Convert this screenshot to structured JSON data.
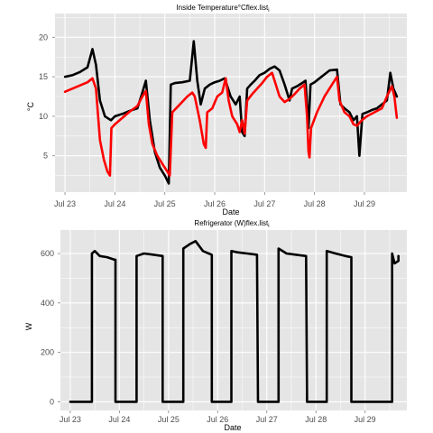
{
  "chart_data": [
    {
      "type": "line",
      "title": "Inside Temperature°Cflex.list",
      "title_subscript": "i",
      "xlabel": "Date",
      "ylabel": "°C",
      "x_ticks": [
        "Jul 23",
        "Jul 24",
        "Jul 25",
        "Jul 26",
        "Jul 27",
        "Jul 28",
        "Jul 29"
      ],
      "x_range_days": [
        22.8,
        29.85
      ],
      "ylim": [
        0.4,
        23.0
      ],
      "y_ticks": [
        5,
        10,
        15,
        20
      ],
      "grid": true,
      "background": "#e5e5e5",
      "series": [
        {
          "color": "#000000",
          "points": [
            [
              23.0,
              15.0
            ],
            [
              23.15,
              15.2
            ],
            [
              23.3,
              15.6
            ],
            [
              23.45,
              16.2
            ],
            [
              23.55,
              18.5
            ],
            [
              23.62,
              16.5
            ],
            [
              23.7,
              12.0
            ],
            [
              23.8,
              10.0
            ],
            [
              23.92,
              9.5
            ],
            [
              24.0,
              10.0
            ],
            [
              24.15,
              10.3
            ],
            [
              24.3,
              10.7
            ],
            [
              24.45,
              11.0
            ],
            [
              24.55,
              13.0
            ],
            [
              24.62,
              14.5
            ],
            [
              24.7,
              9.5
            ],
            [
              24.8,
              5.5
            ],
            [
              24.9,
              3.5
            ],
            [
              25.0,
              2.5
            ],
            [
              25.08,
              1.5
            ],
            [
              25.12,
              14.0
            ],
            [
              25.2,
              14.2
            ],
            [
              25.35,
              14.3
            ],
            [
              25.5,
              14.5
            ],
            [
              25.58,
              19.5
            ],
            [
              25.65,
              14.5
            ],
            [
              25.72,
              11.5
            ],
            [
              25.8,
              13.5
            ],
            [
              25.9,
              14.0
            ],
            [
              26.0,
              14.3
            ],
            [
              26.1,
              14.5
            ],
            [
              26.2,
              14.8
            ],
            [
              26.32,
              12.5
            ],
            [
              26.42,
              11.5
            ],
            [
              26.5,
              12.5
            ],
            [
              26.55,
              8.0
            ],
            [
              26.6,
              7.5
            ],
            [
              26.65,
              13.5
            ],
            [
              26.72,
              14.0
            ],
            [
              26.8,
              14.5
            ],
            [
              26.9,
              15.2
            ],
            [
              27.0,
              15.5
            ],
            [
              27.1,
              16.0
            ],
            [
              27.2,
              16.3
            ],
            [
              27.3,
              15.8
            ],
            [
              27.4,
              14.0
            ],
            [
              27.5,
              12.0
            ],
            [
              27.55,
              13.5
            ],
            [
              27.65,
              13.8
            ],
            [
              27.75,
              14.2
            ],
            [
              27.82,
              14.5
            ],
            [
              27.88,
              8.5
            ],
            [
              27.92,
              14.0
            ],
            [
              28.0,
              14.3
            ],
            [
              28.1,
              14.8
            ],
            [
              28.2,
              15.3
            ],
            [
              28.3,
              15.8
            ],
            [
              28.45,
              15.9
            ],
            [
              28.52,
              11.5
            ],
            [
              28.6,
              11.0
            ],
            [
              28.7,
              10.5
            ],
            [
              28.78,
              9.5
            ],
            [
              28.85,
              10.0
            ],
            [
              28.9,
              5.0
            ],
            [
              28.96,
              10.3
            ],
            [
              29.05,
              10.5
            ],
            [
              29.15,
              10.8
            ],
            [
              29.25,
              11.0
            ],
            [
              29.35,
              11.5
            ],
            [
              29.45,
              12.0
            ],
            [
              29.52,
              15.5
            ],
            [
              29.58,
              13.5
            ],
            [
              29.65,
              12.5
            ]
          ]
        },
        {
          "color": "#ff0000",
          "points": [
            [
              23.0,
              13.1
            ],
            [
              23.15,
              13.5
            ],
            [
              23.3,
              13.9
            ],
            [
              23.45,
              14.3
            ],
            [
              23.55,
              14.8
            ],
            [
              23.62,
              13.5
            ],
            [
              23.7,
              7.0
            ],
            [
              23.78,
              4.5
            ],
            [
              23.85,
              3.0
            ],
            [
              23.9,
              2.5
            ],
            [
              23.93,
              8.5
            ],
            [
              24.0,
              9.0
            ],
            [
              24.15,
              9.8
            ],
            [
              24.3,
              10.6
            ],
            [
              24.45,
              11.3
            ],
            [
              24.55,
              12.5
            ],
            [
              24.62,
              13.2
            ],
            [
              24.68,
              9.0
            ],
            [
              24.75,
              6.5
            ],
            [
              24.85,
              5.0
            ],
            [
              24.95,
              4.0
            ],
            [
              25.05,
              3.0
            ],
            [
              25.1,
              2.5
            ],
            [
              25.15,
              10.5
            ],
            [
              25.3,
              11.5
            ],
            [
              25.45,
              12.5
            ],
            [
              25.55,
              13.0
            ],
            [
              25.6,
              12.5
            ],
            [
              25.7,
              9.5
            ],
            [
              25.78,
              6.5
            ],
            [
              25.82,
              6.0
            ],
            [
              25.85,
              10.5
            ],
            [
              25.95,
              11.0
            ],
            [
              26.05,
              12.5
            ],
            [
              26.15,
              13.0
            ],
            [
              26.22,
              14.8
            ],
            [
              26.28,
              12.0
            ],
            [
              26.35,
              10.0
            ],
            [
              26.45,
              9.0
            ],
            [
              26.5,
              8.0
            ],
            [
              26.55,
              9.5
            ],
            [
              26.6,
              7.8
            ],
            [
              26.65,
              12.0
            ],
            [
              26.75,
              12.8
            ],
            [
              26.85,
              13.5
            ],
            [
              26.95,
              14.2
            ],
            [
              27.05,
              15.0
            ],
            [
              27.15,
              15.5
            ],
            [
              27.2,
              14.5
            ],
            [
              27.3,
              12.5
            ],
            [
              27.4,
              11.8
            ],
            [
              27.5,
              12.2
            ],
            [
              27.6,
              12.8
            ],
            [
              27.7,
              13.5
            ],
            [
              27.8,
              14.0
            ],
            [
              27.85,
              10.0
            ],
            [
              27.88,
              5.5
            ],
            [
              27.9,
              4.8
            ],
            [
              27.93,
              8.5
            ],
            [
              28.05,
              10.5
            ],
            [
              28.2,
              12.5
            ],
            [
              28.35,
              14.0
            ],
            [
              28.45,
              15.0
            ],
            [
              28.5,
              12.0
            ],
            [
              28.6,
              10.5
            ],
            [
              28.7,
              10.0
            ],
            [
              28.78,
              9.0
            ],
            [
              28.85,
              8.8
            ],
            [
              28.95,
              9.5
            ],
            [
              29.05,
              10.0
            ],
            [
              29.2,
              10.5
            ],
            [
              29.35,
              11.0
            ],
            [
              29.45,
              12.5
            ],
            [
              29.55,
              13.8
            ],
            [
              29.6,
              12.5
            ],
            [
              29.65,
              9.8
            ]
          ]
        }
      ]
    },
    {
      "type": "line",
      "title": "Refrigerator (W)flex.list",
      "title_subscript": "i",
      "xlabel": "Date",
      "ylabel": "W",
      "x_ticks": [
        "Jul 23",
        "Jul 24",
        "Jul 25",
        "Jul 26",
        "Jul 27",
        "Jul 28",
        "Jul 29"
      ],
      "x_range_days": [
        22.8,
        29.85
      ],
      "ylim": [
        -35,
        695
      ],
      "y_ticks": [
        0,
        200,
        400,
        600
      ],
      "grid": true,
      "background": "#e5e5e5",
      "series": [
        {
          "color": "#000000",
          "points": [
            [
              23.0,
              0
            ],
            [
              23.44,
              0
            ],
            [
              23.44,
              600
            ],
            [
              23.5,
              610
            ],
            [
              23.6,
              590
            ],
            [
              23.75,
              585
            ],
            [
              23.9,
              575
            ],
            [
              23.92,
              575
            ],
            [
              23.92,
              0
            ],
            [
              24.35,
              0
            ],
            [
              24.35,
              590
            ],
            [
              24.5,
              600
            ],
            [
              24.7,
              595
            ],
            [
              24.88,
              590
            ],
            [
              24.88,
              0
            ],
            [
              25.3,
              0
            ],
            [
              25.3,
              620
            ],
            [
              25.45,
              640
            ],
            [
              25.55,
              650
            ],
            [
              25.7,
              610
            ],
            [
              25.88,
              595
            ],
            [
              25.88,
              0
            ],
            [
              26.28,
              0
            ],
            [
              26.28,
              610
            ],
            [
              26.4,
              605
            ],
            [
              26.6,
              600
            ],
            [
              26.8,
              595
            ],
            [
              26.82,
              0
            ],
            [
              27.24,
              0
            ],
            [
              27.24,
              620
            ],
            [
              27.4,
              600
            ],
            [
              27.6,
              595
            ],
            [
              27.8,
              590
            ],
            [
              27.82,
              0
            ],
            [
              28.22,
              0
            ],
            [
              28.22,
              610
            ],
            [
              28.4,
              600
            ],
            [
              28.6,
              590
            ],
            [
              28.72,
              585
            ],
            [
              28.72,
              0
            ],
            [
              29.15,
              0
            ],
            [
              29.15,
              0
            ],
            [
              29.55,
              0
            ],
            [
              29.55,
              600
            ],
            [
              29.6,
              560
            ],
            [
              29.68,
              570
            ],
            [
              29.68,
              590
            ]
          ]
        }
      ]
    }
  ]
}
